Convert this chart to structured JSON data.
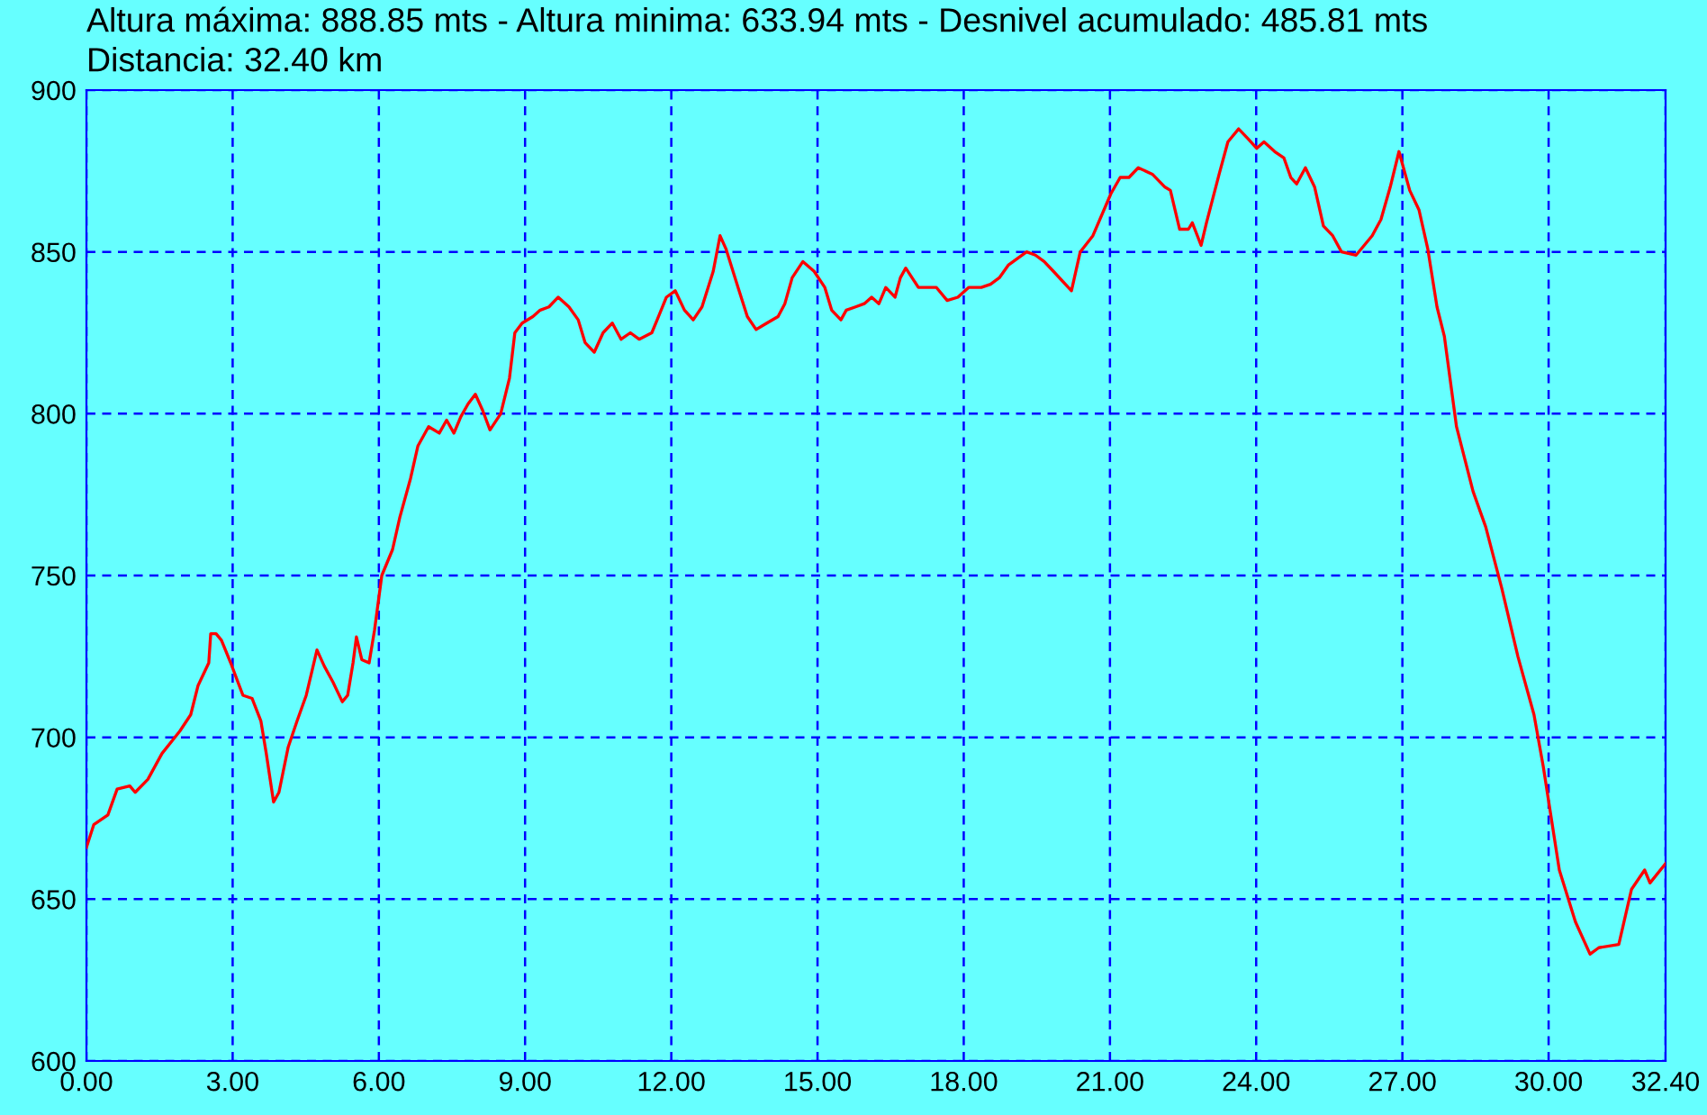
{
  "chart_data": {
    "type": "line",
    "title": "Altura máxima: 888.85 mts - Altura minima: 633.94 mts - Desnivel acumulado: 485.81 mts",
    "subtitle": "Distancia: 32.40 km",
    "series": [
      {
        "color": "#ff0000",
        "x": [
          0,
          0.15,
          0.44,
          0.63,
          0.89,
          1.0,
          1.26,
          1.55,
          1.92,
          2.14,
          2.29,
          2.51,
          2.55,
          2.66,
          2.77,
          2.96,
          3.21,
          3.4,
          3.58,
          3.69,
          3.77,
          3.84,
          3.95,
          4.14,
          4.32,
          4.51,
          4.73,
          4.88,
          5.06,
          5.25,
          5.36,
          5.47,
          5.54,
          5.65,
          5.8,
          5.91,
          6.06,
          6.28,
          6.43,
          6.65,
          6.8,
          7.02,
          7.24,
          7.39,
          7.54,
          7.68,
          7.83,
          7.98,
          8.13,
          8.28,
          8.5,
          8.68,
          8.79,
          8.94,
          9.16,
          9.31,
          9.49,
          9.68,
          9.9,
          10.09,
          10.23,
          10.42,
          10.6,
          10.79,
          10.97,
          11.16,
          11.34,
          11.6,
          11.71,
          11.9,
          12.08,
          12.27,
          12.45,
          12.63,
          12.86,
          13.0,
          13.12,
          13.37,
          13.56,
          13.74,
          13.96,
          14.19,
          14.33,
          14.48,
          14.7,
          14.93,
          15.15,
          15.29,
          15.48,
          15.59,
          15.78,
          15.96,
          16.11,
          16.26,
          16.4,
          16.59,
          16.7,
          16.81,
          17.07,
          17.25,
          17.44,
          17.66,
          17.88,
          18.1,
          18.36,
          18.55,
          18.73,
          18.92,
          19.29,
          19.47,
          19.65,
          19.84,
          20.21,
          20.39,
          20.65,
          21.02,
          21.21,
          21.39,
          21.58,
          21.87,
          22.13,
          22.24,
          22.43,
          22.61,
          22.69,
          22.87,
          22.98,
          23.24,
          23.42,
          23.64,
          23.83,
          24.01,
          24.16,
          24.38,
          24.57,
          24.71,
          24.83,
          25.01,
          25.2,
          25.38,
          25.57,
          25.75,
          26.05,
          26.38,
          26.56,
          26.75,
          26.93,
          27.15,
          27.34,
          27.52,
          27.71,
          27.86,
          28.11,
          28.45,
          28.71,
          29.04,
          29.37,
          29.7,
          29.89,
          30.22,
          30.55,
          30.85,
          31.03,
          31.44,
          31.7,
          31.97,
          32.08,
          32.4
        ],
        "values": [
          666,
          673,
          676,
          684,
          685,
          683,
          687,
          695,
          702,
          707,
          716,
          723,
          732,
          732,
          730,
          723,
          713,
          712,
          705,
          695,
          687,
          680,
          683,
          697,
          705,
          713,
          727,
          722,
          717,
          711,
          713,
          723,
          731,
          724,
          723,
          733,
          750,
          758,
          768,
          780,
          790,
          796,
          794,
          798,
          794,
          799,
          803,
          806,
          801,
          795,
          800,
          811,
          825,
          828,
          830,
          832,
          833,
          836,
          833,
          829,
          822,
          819,
          825,
          828,
          823,
          825,
          823,
          825,
          829,
          836,
          838,
          832,
          829,
          833,
          844,
          855,
          851,
          839,
          830,
          826,
          828,
          830,
          834,
          842,
          847,
          844,
          839,
          832,
          829,
          832,
          833,
          834,
          836,
          834,
          839,
          836,
          842,
          845,
          839,
          839,
          839,
          835,
          836,
          839,
          839,
          840,
          842,
          846,
          850,
          849,
          847,
          844,
          838,
          850,
          855,
          868,
          873,
          873,
          876,
          874,
          870,
          869,
          857,
          857,
          859,
          852,
          859,
          874,
          884,
          888,
          885,
          882,
          884,
          881,
          879,
          873,
          871,
          876,
          870,
          858,
          855,
          850,
          849,
          855,
          860,
          870,
          881,
          869,
          863,
          851,
          833,
          824,
          796,
          776,
          765,
          746,
          725,
          707,
          691,
          659,
          643,
          633,
          635,
          636,
          653,
          659,
          655,
          661
        ]
      }
    ],
    "xlim": [
      0,
      32.4
    ],
    "xticks": [
      {
        "value": 0,
        "label": "0.00"
      },
      {
        "value": 3,
        "label": "3.00"
      },
      {
        "value": 6,
        "label": "6.00"
      },
      {
        "value": 9,
        "label": "9.00"
      },
      {
        "value": 12,
        "label": "12.00"
      },
      {
        "value": 15,
        "label": "15.00"
      },
      {
        "value": 18,
        "label": "18.00"
      },
      {
        "value": 21,
        "label": "21.00"
      },
      {
        "value": 24,
        "label": "24.00"
      },
      {
        "value": 27,
        "label": "27.00"
      },
      {
        "value": 30,
        "label": "30.00"
      },
      {
        "value": 32.4,
        "label": "32.40"
      }
    ],
    "ylim": [
      600,
      900
    ],
    "yticks": [
      600,
      650,
      700,
      750,
      800,
      850,
      900
    ],
    "grid": true,
    "line_style": "solid",
    "marker": "none"
  }
}
